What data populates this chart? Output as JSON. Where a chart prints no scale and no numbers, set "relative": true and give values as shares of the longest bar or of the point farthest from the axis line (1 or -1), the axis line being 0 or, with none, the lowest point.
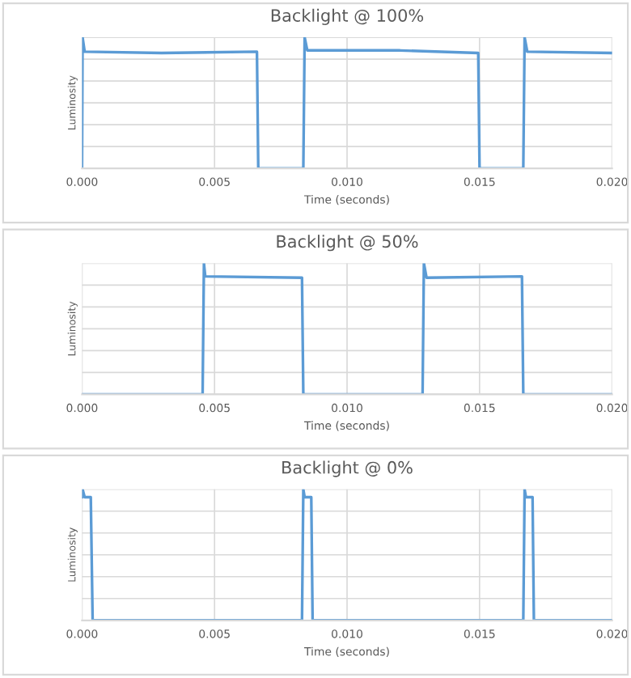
{
  "chart_data": [
    {
      "type": "line",
      "title": "Backlight @ 100%",
      "xlabel": "Time (seconds)",
      "ylabel": "Luminosity",
      "relative": true,
      "grid": true,
      "xlim": [
        0,
        0.02
      ],
      "xticks": [
        {
          "value": 0,
          "label": "0.000"
        },
        {
          "value": 0.005,
          "label": "0.005"
        },
        {
          "value": 0.01,
          "label": "0.010"
        },
        {
          "value": 0.015,
          "label": "0.015"
        },
        {
          "value": 0.02,
          "label": "0.020"
        }
      ],
      "series": [
        {
          "color": "#5b9bd5",
          "x": [
            0,
            2e-05,
            0.0001,
            0.003,
            0.0066,
            0.00665,
            0.0075,
            0.00835,
            0.0084,
            0.0085,
            0.012,
            0.01495,
            0.015,
            0.0158,
            0.01665,
            0.0167,
            0.0168,
            0.02
          ],
          "values": [
            0,
            1,
            0.89,
            0.88,
            0.89,
            0,
            0,
            0,
            1,
            0.9,
            0.9,
            0.88,
            0,
            0,
            0,
            1,
            0.89,
            0.88
          ]
        }
      ]
    },
    {
      "type": "line",
      "title": "Backlight @ 50%",
      "xlabel": "Time (seconds)",
      "ylabel": "Luminosity",
      "relative": true,
      "grid": true,
      "xlim": [
        0,
        0.02
      ],
      "xticks": [
        {
          "value": 0,
          "label": "0.000"
        },
        {
          "value": 0.005,
          "label": "0.005"
        },
        {
          "value": 0.01,
          "label": "0.010"
        },
        {
          "value": 0.015,
          "label": "0.015"
        },
        {
          "value": 0.02,
          "label": "0.020"
        }
      ],
      "series": [
        {
          "color": "#5b9bd5",
          "x": [
            0,
            0.00455,
            0.0046,
            0.00465,
            0.0083,
            0.00835,
            0.0128,
            0.01285,
            0.0129,
            0.013,
            0.0166,
            0.01665,
            0.02
          ],
          "values": [
            0,
            0,
            1,
            0.9,
            0.89,
            0,
            0,
            0,
            1,
            0.89,
            0.9,
            0,
            0
          ]
        }
      ]
    },
    {
      "type": "line",
      "title": "Backlight @ 0%",
      "xlabel": "Time (seconds)",
      "ylabel": "Luminosity",
      "relative": true,
      "grid": true,
      "xlim": [
        0,
        0.02
      ],
      "xticks": [
        {
          "value": 0,
          "label": "0.000"
        },
        {
          "value": 0.005,
          "label": "0.005"
        },
        {
          "value": 0.01,
          "label": "0.010"
        },
        {
          "value": 0.015,
          "label": "0.015"
        },
        {
          "value": 0.02,
          "label": "0.020"
        }
      ],
      "series": [
        {
          "color": "#5b9bd5",
          "x": [
            0,
            2e-05,
            0.0001,
            0.00033,
            0.0004,
            0.0083,
            0.00835,
            0.0084,
            0.00865,
            0.0087,
            0.01665,
            0.0167,
            0.01675,
            0.017,
            0.01705,
            0.02
          ],
          "values": [
            0.94,
            1,
            0.94,
            0.94,
            0,
            0,
            1,
            0.94,
            0.94,
            0,
            0,
            1,
            0.94,
            0.94,
            0,
            0
          ]
        }
      ]
    }
  ]
}
